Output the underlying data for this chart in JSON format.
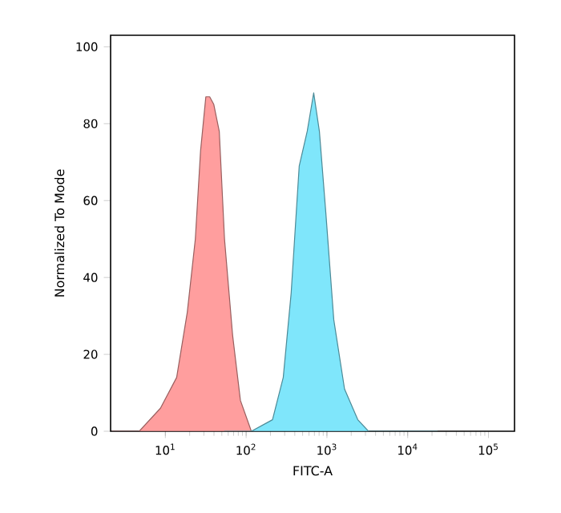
{
  "chart_data": {
    "type": "area",
    "xlabel": "FITC-A",
    "ylabel": "Normalized To Mode",
    "log": "x",
    "xlim": [
      2.1,
      210000
    ],
    "ylim": [
      0,
      103
    ],
    "xticks": [
      {
        "value": 10,
        "label": "10$^{1}$"
      },
      {
        "value": 100,
        "label": "10$^{2}$"
      },
      {
        "value": 1000,
        "label": "10$^{3}$"
      },
      {
        "value": 10000,
        "label": "10$^{4}$"
      },
      {
        "value": 100000,
        "label": "10$^{5}$"
      }
    ],
    "yticks": [
      0,
      20,
      40,
      60,
      80,
      100
    ],
    "grid": false,
    "series": [
      {
        "color": "#ff9e9e",
        "x": [
          2.2,
          4.75,
          8.7,
          13.8,
          18.7,
          23.5,
          27.3,
          31.7,
          35.4,
          39.8,
          46.5,
          54,
          68,
          85,
          116,
          212
        ],
        "values": [
          0,
          0,
          6,
          14,
          31,
          50,
          73,
          87,
          87,
          85,
          78,
          50,
          25,
          8,
          0,
          0
        ]
      },
      {
        "color": "#7fe6fb",
        "x": [
          54,
          116,
          212,
          288,
          361,
          454,
          570,
          686,
          807,
          968,
          1216,
          1652,
          2410,
          3270,
          7020,
          23200
        ],
        "values": [
          0,
          0,
          3,
          14,
          36,
          69,
          78,
          88,
          78,
          57,
          29,
          11,
          3,
          0,
          0,
          0
        ]
      }
    ]
  }
}
